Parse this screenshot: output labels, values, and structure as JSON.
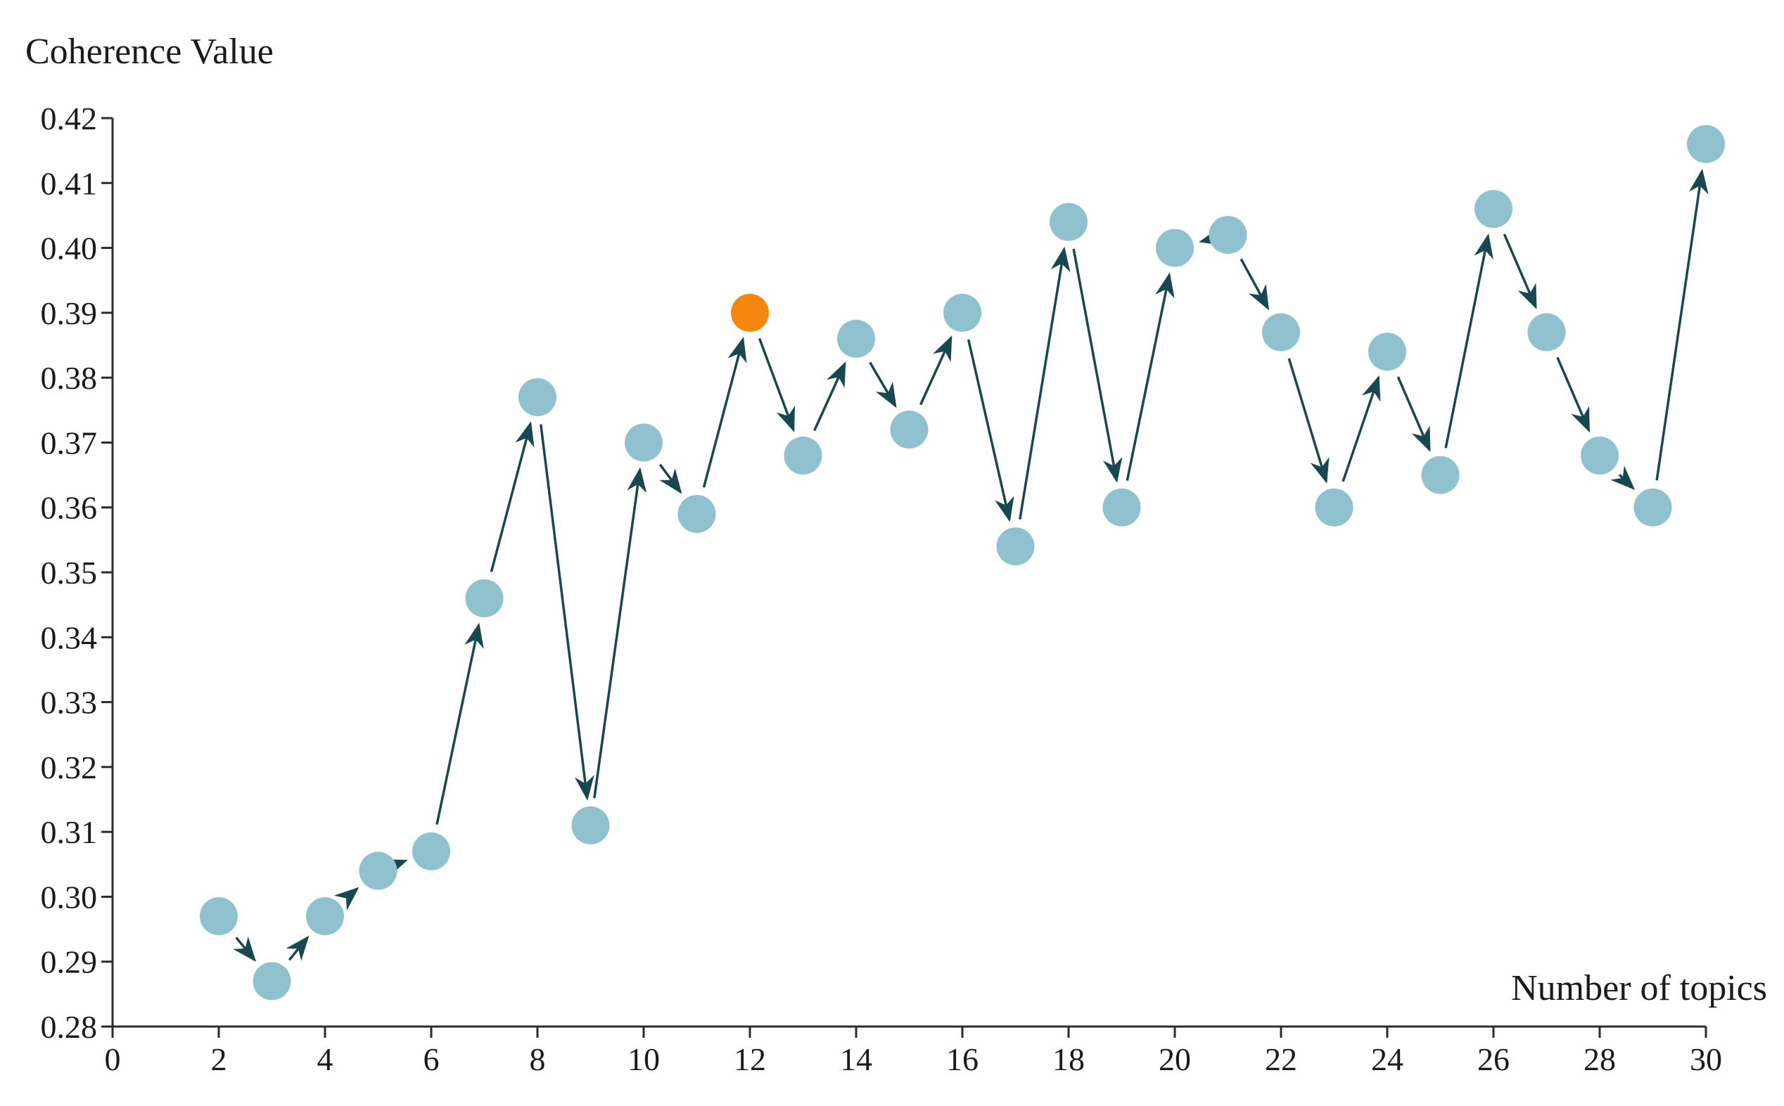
{
  "chart_data": {
    "type": "scatter",
    "xlabel": "Number of topics",
    "ylabel": "Coherence Value",
    "xlim": [
      0,
      30
    ],
    "ylim": [
      0.28,
      0.42
    ],
    "x_ticks": [
      0,
      2,
      4,
      6,
      8,
      10,
      12,
      14,
      16,
      18,
      20,
      22,
      24,
      26,
      28,
      30
    ],
    "x_tick_labels": [
      "0",
      "2",
      "4",
      "6",
      "8",
      "10",
      "12",
      "14",
      "16",
      "18",
      "20",
      "22",
      "24",
      "26",
      "28",
      "30"
    ],
    "y_ticks": [
      0.28,
      0.29,
      0.3,
      0.31,
      0.32,
      0.33,
      0.34,
      0.35,
      0.36,
      0.37,
      0.38,
      0.39,
      0.4,
      0.41,
      0.42
    ],
    "y_tick_labels": [
      "0.28",
      "0.29",
      "0.30",
      "0.31",
      "0.32",
      "0.33",
      "0.34",
      "0.35",
      "0.36",
      "0.37",
      "0.38",
      "0.39",
      "0.40",
      "0.41",
      "0.42"
    ],
    "grid": false,
    "connected_by": "arrows",
    "highlight_x": 12,
    "series": [
      {
        "x": [
          2,
          3,
          4,
          5,
          6,
          7,
          8,
          9,
          10,
          11,
          12,
          13,
          14,
          15,
          16,
          17,
          18,
          19,
          20,
          21,
          22,
          23,
          24,
          25,
          26,
          27,
          28,
          29,
          30
        ],
        "y": [
          0.297,
          0.287,
          0.297,
          0.304,
          0.307,
          0.346,
          0.377,
          0.311,
          0.37,
          0.359,
          0.39,
          0.368,
          0.386,
          0.372,
          0.39,
          0.354,
          0.404,
          0.36,
          0.4,
          0.402,
          0.387,
          0.36,
          0.384,
          0.365,
          0.406,
          0.387,
          0.368,
          0.36,
          0.416
        ]
      }
    ]
  },
  "colors": {
    "point": "#8fc1cf",
    "highlight": "#f5870f",
    "arrow": "#17474f",
    "axis": "#2b2b2b"
  }
}
